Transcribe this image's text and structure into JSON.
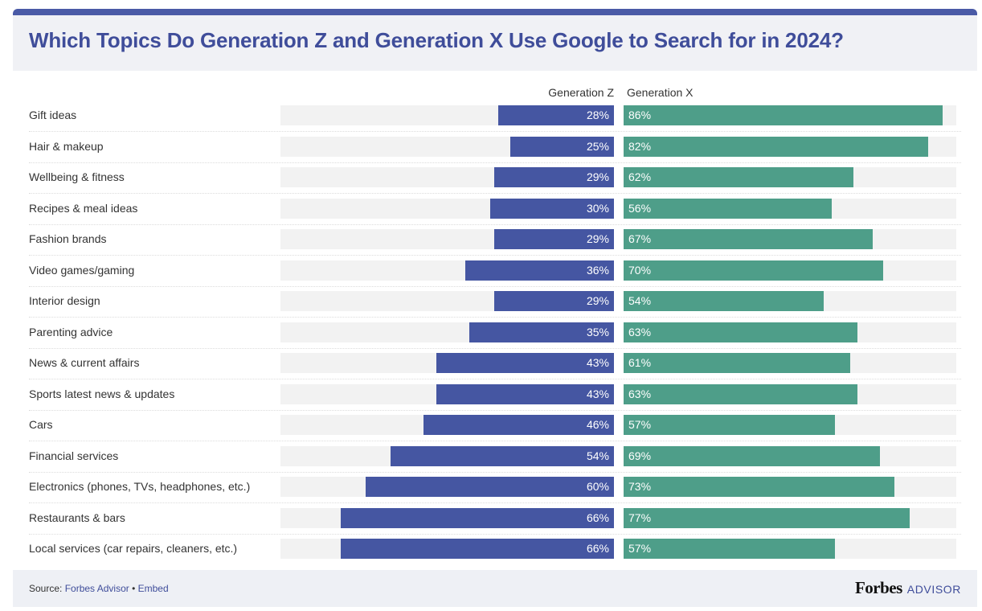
{
  "title": "Which Topics Do Generation Z and Generation X Use Google to Search for in 2024?",
  "chart_data": {
    "type": "bar",
    "orientation": "horizontal-diverging",
    "title": "Which Topics Do Generation Z and Generation X Use Google to Search for in 2024?",
    "categories": [
      "Gift ideas",
      "Hair & makeup",
      "Wellbeing & fitness",
      "Recipes & meal ideas",
      "Fashion brands",
      "Video games/gaming",
      "Interior design",
      "Parenting advice",
      "News & current affairs",
      "Sports latest news & updates",
      "Cars",
      "Financial services",
      "Electronics (phones, TVs, headphones, etc.)",
      "Restaurants & bars",
      "Local services (car repairs, cleaners, etc.)"
    ],
    "series": [
      {
        "name": "Generation Z",
        "values": [
          28,
          25,
          29,
          30,
          29,
          36,
          29,
          35,
          43,
          43,
          46,
          54,
          60,
          66,
          66
        ],
        "color": "#4556a2"
      },
      {
        "name": "Generation X",
        "values": [
          86,
          82,
          62,
          56,
          67,
          70,
          54,
          63,
          61,
          63,
          57,
          69,
          73,
          77,
          57
        ],
        "color": "#4e9e89"
      }
    ],
    "unit": "%",
    "xlim": [
      0,
      100
    ]
  },
  "footer": {
    "source_prefix": "Source: ",
    "source_link": "Forbes Advisor",
    "separator": " • ",
    "embed": "Embed",
    "brand_name": "Forbes",
    "brand_suffix": "ADVISOR"
  }
}
